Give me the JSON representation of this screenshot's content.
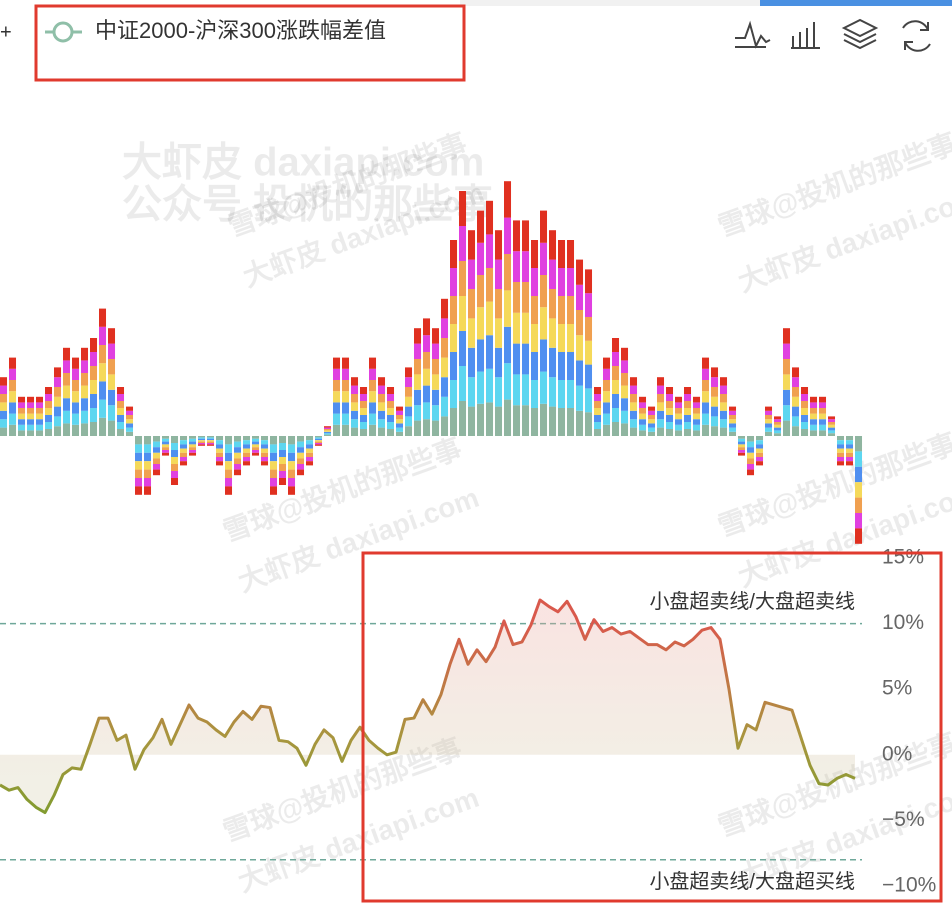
{
  "toolbar": {
    "plus": "+"
  },
  "watermarks": [
    "大虾皮 daxiapi.com",
    "公众号 投机的那些事",
    "雪球@投机的那些事"
  ],
  "chart_data": [
    {
      "type": "bar",
      "stacked": true,
      "ylim": [
        -80,
        190
      ],
      "series": [
        {
          "color": "#8fb5a0",
          "values": [
            6,
            8,
            4,
            4,
            4,
            5,
            7,
            9,
            8,
            9,
            10,
            13,
            11,
            5,
            3,
            -6,
            -6,
            -4,
            -2,
            -5,
            -3,
            -2,
            -1,
            -1,
            -3,
            -6,
            -4,
            -3,
            -2,
            -3,
            -6,
            -5,
            -6,
            -4,
            -3,
            -1,
            1,
            8,
            8,
            6,
            5,
            8,
            6,
            5,
            3,
            7,
            11,
            12,
            11,
            14,
            20,
            25,
            21,
            23,
            24,
            21,
            26,
            22,
            22,
            20,
            23,
            21,
            20,
            20,
            18,
            17,
            5,
            8,
            10,
            9,
            6,
            4,
            3,
            6,
            5,
            4,
            5,
            4,
            8,
            7,
            6,
            3,
            -2,
            -4,
            -3,
            3,
            2,
            11,
            7,
            5,
            4,
            4,
            2,
            -3,
            -3,
            -11
          ]
        },
        {
          "color": "#5dd6f0",
          "values": [
            6,
            8,
            4,
            4,
            4,
            5,
            7,
            9,
            8,
            9,
            10,
            13,
            11,
            5,
            3,
            -6,
            -6,
            -4,
            -2,
            -5,
            -3,
            -2,
            -1,
            -1,
            -3,
            -6,
            -4,
            -3,
            -2,
            -3,
            -6,
            -5,
            -6,
            -4,
            -3,
            -1,
            1,
            8,
            8,
            6,
            5,
            8,
            6,
            5,
            3,
            7,
            11,
            12,
            11,
            14,
            20,
            25,
            21,
            23,
            24,
            21,
            26,
            22,
            22,
            20,
            23,
            21,
            20,
            20,
            18,
            17,
            5,
            8,
            10,
            9,
            6,
            4,
            3,
            6,
            5,
            4,
            5,
            4,
            8,
            7,
            6,
            3,
            -2,
            -4,
            -3,
            3,
            2,
            11,
            7,
            5,
            4,
            4,
            2,
            -3,
            -3,
            -11
          ]
        },
        {
          "color": "#4f8ff0",
          "values": [
            6,
            8,
            4,
            4,
            4,
            5,
            7,
            9,
            8,
            9,
            10,
            13,
            11,
            5,
            3,
            -6,
            -6,
            -4,
            -2,
            -5,
            -3,
            -2,
            -1,
            -1,
            -3,
            -6,
            -4,
            -3,
            -2,
            -3,
            -6,
            -5,
            -6,
            -4,
            -3,
            -1,
            1,
            8,
            8,
            6,
            5,
            8,
            6,
            5,
            3,
            7,
            11,
            12,
            11,
            14,
            20,
            25,
            21,
            23,
            24,
            21,
            26,
            22,
            22,
            20,
            23,
            21,
            20,
            20,
            18,
            17,
            5,
            8,
            10,
            9,
            6,
            4,
            3,
            6,
            5,
            4,
            5,
            4,
            8,
            7,
            6,
            3,
            -2,
            -4,
            -3,
            3,
            2,
            11,
            7,
            5,
            4,
            4,
            2,
            -3,
            -3,
            -11
          ]
        },
        {
          "color": "#f5d95a",
          "values": [
            6,
            8,
            4,
            4,
            4,
            5,
            7,
            9,
            8,
            9,
            10,
            13,
            11,
            5,
            3,
            -6,
            -6,
            -4,
            -2,
            -5,
            -3,
            -2,
            -1,
            -1,
            -3,
            -6,
            -4,
            -3,
            -2,
            -3,
            -6,
            -5,
            -6,
            -4,
            -3,
            -1,
            1,
            8,
            8,
            6,
            5,
            8,
            6,
            5,
            3,
            7,
            11,
            12,
            11,
            14,
            20,
            25,
            21,
            23,
            24,
            21,
            26,
            22,
            22,
            20,
            23,
            21,
            20,
            20,
            18,
            17,
            5,
            8,
            10,
            9,
            6,
            4,
            3,
            6,
            5,
            4,
            5,
            4,
            8,
            7,
            6,
            3,
            -2,
            -4,
            -3,
            3,
            2,
            11,
            7,
            5,
            4,
            4,
            2,
            -3,
            -3,
            -11
          ]
        },
        {
          "color": "#f0a050",
          "values": [
            6,
            8,
            4,
            4,
            4,
            5,
            7,
            9,
            8,
            9,
            10,
            13,
            11,
            5,
            3,
            -6,
            -6,
            -4,
            -2,
            -5,
            -3,
            -2,
            -1,
            -1,
            -3,
            -6,
            -4,
            -3,
            -2,
            -3,
            -6,
            -5,
            -6,
            -4,
            -3,
            -1,
            1,
            8,
            8,
            6,
            5,
            8,
            6,
            5,
            3,
            7,
            11,
            12,
            11,
            14,
            20,
            25,
            21,
            23,
            24,
            21,
            26,
            22,
            22,
            20,
            23,
            21,
            20,
            20,
            18,
            17,
            5,
            8,
            10,
            9,
            6,
            4,
            3,
            6,
            5,
            4,
            5,
            4,
            8,
            7,
            6,
            3,
            -2,
            -4,
            -3,
            3,
            2,
            11,
            7,
            5,
            4,
            4,
            2,
            -3,
            -3,
            -11
          ]
        },
        {
          "color": "#e040e0",
          "values": [
            6,
            8,
            4,
            4,
            4,
            5,
            7,
            9,
            8,
            9,
            10,
            13,
            11,
            5,
            3,
            -6,
            -6,
            -4,
            -2,
            -5,
            -3,
            -2,
            -1,
            -1,
            -3,
            -6,
            -4,
            -3,
            -2,
            -3,
            -6,
            -5,
            -6,
            -4,
            -3,
            -1,
            1,
            8,
            8,
            6,
            5,
            8,
            6,
            5,
            3,
            7,
            11,
            12,
            11,
            14,
            20,
            25,
            21,
            23,
            24,
            21,
            26,
            22,
            22,
            20,
            23,
            21,
            20,
            20,
            18,
            17,
            5,
            8,
            10,
            9,
            6,
            4,
            3,
            6,
            5,
            4,
            5,
            4,
            8,
            7,
            6,
            3,
            -2,
            -4,
            -3,
            3,
            2,
            11,
            7,
            5,
            4,
            4,
            2,
            -3,
            -3,
            -11
          ]
        },
        {
          "color": "#e03020",
          "values": [
            6,
            8,
            4,
            4,
            4,
            5,
            7,
            9,
            8,
            9,
            10,
            13,
            11,
            5,
            3,
            -6,
            -6,
            -4,
            -2,
            -5,
            -3,
            -2,
            -1,
            -1,
            -3,
            -6,
            -4,
            -3,
            -2,
            -3,
            -6,
            -5,
            -6,
            -4,
            -3,
            -1,
            1,
            8,
            8,
            6,
            5,
            8,
            6,
            5,
            3,
            7,
            11,
            12,
            11,
            14,
            20,
            25,
            21,
            23,
            24,
            21,
            26,
            22,
            22,
            20,
            23,
            21,
            20,
            20,
            18,
            17,
            5,
            8,
            10,
            9,
            6,
            4,
            3,
            6,
            5,
            4,
            5,
            4,
            8,
            7,
            6,
            3,
            -2,
            -4,
            -3,
            3,
            2,
            11,
            7,
            5,
            4,
            4,
            2,
            -3,
            -3,
            -11
          ]
        }
      ]
    },
    {
      "type": "line",
      "ylim": [
        -10,
        15
      ],
      "yticks": [
        {
          "value": 15,
          "label": "15%"
        },
        {
          "value": 10,
          "label": "10%"
        },
        {
          "value": 5,
          "label": "5%"
        },
        {
          "value": 0,
          "label": "0%"
        },
        {
          "value": -5,
          "label": "−5%"
        },
        {
          "value": -10,
          "label": "−10%"
        }
      ],
      "markers": [
        {
          "value": 10,
          "label": "小盘超卖线/大盘超卖线"
        },
        {
          "value": -8,
          "label": "小盘超卖线/大盘超买线"
        }
      ],
      "series": [
        {
          "name": "中证2000-沪深300涨跌幅差值",
          "color": "#8fbfa8",
          "values": [
            -2.3,
            -2.7,
            -2.5,
            -3.4,
            -4.0,
            -4.4,
            -3.1,
            -1.5,
            -1.0,
            -1.1,
            0.8,
            2.8,
            2.8,
            1.1,
            1.5,
            -1.1,
            0.4,
            1.3,
            2.7,
            0.8,
            2.3,
            3.8,
            2.8,
            2.5,
            1.9,
            1.4,
            2.5,
            3.3,
            2.7,
            3.7,
            3.6,
            1.1,
            1.0,
            0.5,
            -0.8,
            0.8,
            1.9,
            1.3,
            -0.5,
            1.1,
            2.1,
            1.1,
            0.5,
            0,
            0.2,
            2.7,
            2.8,
            4.2,
            3.1,
            4.6,
            6.9,
            8.8,
            6.9,
            8.0,
            7.1,
            8.2,
            10.2,
            8.4,
            8.6,
            9.9,
            11.8,
            11.3,
            10.9,
            11.7,
            10.5,
            8.8,
            10.3,
            9.4,
            9.7,
            9.2,
            9.4,
            8.9,
            8.4,
            8.4,
            8.0,
            8.6,
            8.3,
            8.8,
            9.5,
            9.7,
            8.8,
            5.0,
            0.5,
            2.3,
            1.9,
            4.0,
            3.8,
            3.6,
            3.4,
            1.3,
            -0.8,
            -2.2,
            -2.3,
            -1.8,
            -1.5,
            -1.8
          ]
        }
      ]
    }
  ]
}
